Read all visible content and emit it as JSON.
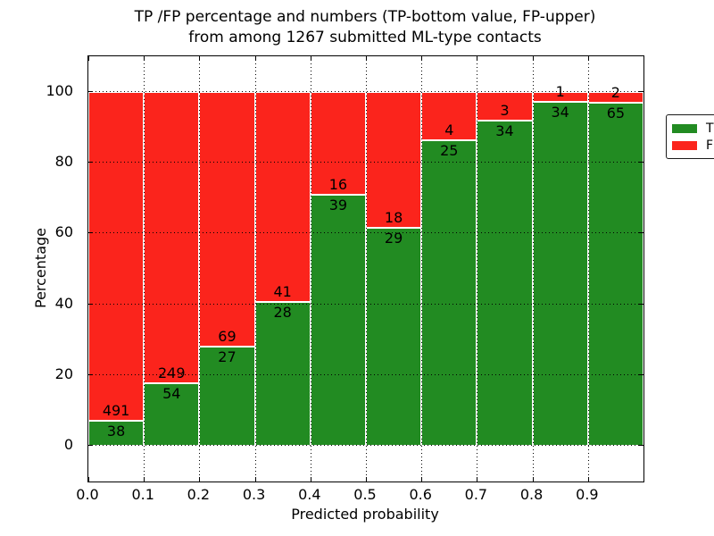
{
  "title": {
    "line1": "TP /FP percentage and numbers (TP-bottom value, FP-upper)",
    "line2": "from among 1267 submitted ML-type contacts"
  },
  "chart_data": {
    "type": "bar",
    "stacked": true,
    "title": "TP /FP percentage and numbers (TP-bottom value, FP-upper) from among 1267 submitted ML-type contacts",
    "xlabel": "Predicted probability",
    "ylabel": "Percentage",
    "total_contacts": 1267,
    "xlim": [
      0.0,
      1.0
    ],
    "ylim": [
      -10,
      110
    ],
    "x_tick_labels": [
      "0.0",
      "0.1",
      "0.2",
      "0.3",
      "0.4",
      "0.5",
      "0.6",
      "0.7",
      "0.8",
      "0.9"
    ],
    "y_tick_values": [
      0,
      20,
      40,
      60,
      80,
      100
    ],
    "grid": {
      "style": "dotted",
      "color": "#000000",
      "on_top_of_bars": true
    },
    "colors": {
      "tp": "#228b22",
      "fp": "#fb241c",
      "bar_edge": "#ffffff"
    },
    "legend": {
      "position": "upper right",
      "entries": [
        {
          "label": "TP",
          "color": "#228b22"
        },
        {
          "label": "FP",
          "color": "#fb241c"
        }
      ]
    },
    "value_semantics": "labels on bars are raw counts; segment heights are tp/(tp+fp)*100 and fp/(tp+fp)*100 percent; each full bar totals 100%",
    "bins": [
      {
        "x_start": 0.0,
        "x_end": 0.1,
        "tp": 38,
        "fp": 491
      },
      {
        "x_start": 0.1,
        "x_end": 0.2,
        "tp": 54,
        "fp": 249
      },
      {
        "x_start": 0.2,
        "x_end": 0.3,
        "tp": 27,
        "fp": 69
      },
      {
        "x_start": 0.3,
        "x_end": 0.4,
        "tp": 28,
        "fp": 41
      },
      {
        "x_start": 0.4,
        "x_end": 0.5,
        "tp": 39,
        "fp": 16
      },
      {
        "x_start": 0.5,
        "x_end": 0.6,
        "tp": 29,
        "fp": 18
      },
      {
        "x_start": 0.6,
        "x_end": 0.7,
        "tp": 25,
        "fp": 4
      },
      {
        "x_start": 0.7,
        "x_end": 0.8,
        "tp": 34,
        "fp": 3
      },
      {
        "x_start": 0.8,
        "x_end": 0.9,
        "tp": 34,
        "fp": 1
      },
      {
        "x_start": 0.9,
        "x_end": 1.0,
        "tp": 65,
        "fp": 2
      }
    ]
  }
}
